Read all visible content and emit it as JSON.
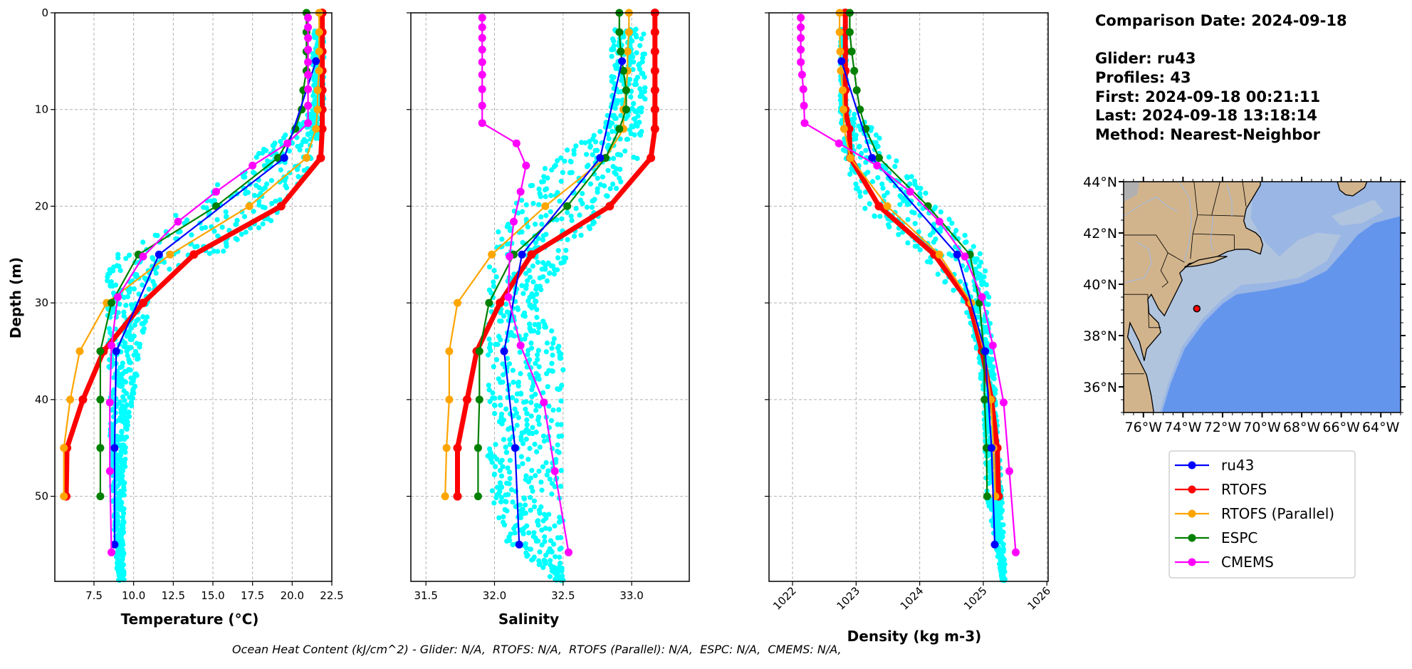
{
  "info": {
    "comparison_date": "Comparison Date: 2024-09-18",
    "glider": "Glider: ru43",
    "profiles": "Profiles: 43",
    "first": "First: 2024-09-18 00:21:11",
    "last": "Last: 2024-09-18 13:18:14",
    "method": "Method: Nearest-Neighbor"
  },
  "footer": "Ocean Heat Content (kJ/cm^2) - Glider: N/A,  RTOFS: N/A,  RTOFS (Parallel): N/A,  ESPC: N/A,  CMEMS: N/A,",
  "colors": {
    "ru43": "#0000ff",
    "RTOFS": "#ff0000",
    "RTOFS (Parallel)": "#ffa500",
    "ESPC": "#008000",
    "CMEMS": "#ff00ff",
    "glider_profiles": "#00ffff",
    "land": "#d2b48c",
    "shelf": "#b0c4de",
    "slope": "#9ab6e4",
    "deep_ocean": "#6495ed"
  },
  "legend": [
    {
      "name": "ru43",
      "color": "#0000ff"
    },
    {
      "name": "RTOFS",
      "color": "#ff0000"
    },
    {
      "name": "RTOFS (Parallel)",
      "color": "#ffa500"
    },
    {
      "name": "ESPC",
      "color": "#008000"
    },
    {
      "name": "CMEMS",
      "color": "#ff00ff"
    }
  ],
  "chart_data": [
    {
      "type": "line",
      "xlabel": "Temperature (°C)",
      "ylabel": "Depth (m)",
      "xlim": [
        5.03,
        22.5
      ],
      "ylim": [
        58.8,
        0
      ],
      "xticks": [
        7.5,
        10,
        12.5,
        15,
        17.5,
        20,
        22.5
      ],
      "xtick_labels": [
        "7.5",
        "10.0",
        "12.5",
        "15.0",
        "17.5",
        "20.0",
        "22.5"
      ],
      "yticks": [
        0,
        10,
        20,
        30,
        40,
        50
      ],
      "ytick_labels": [
        "0",
        "10",
        "20",
        "30",
        "40",
        "50"
      ],
      "grid": true,
      "glider_profiles_envelope": {
        "depth": [
          1.8,
          10,
          12,
          15,
          20,
          25,
          27,
          30,
          35,
          40,
          45,
          50,
          58.8
        ],
        "min": [
          21.3,
          21.3,
          20.0,
          17.5,
          13.5,
          9.0,
          8.3,
          8.3,
          8.4,
          8.5,
          8.5,
          8.6,
          9.0
        ],
        "max": [
          22.0,
          22.0,
          21.8,
          21.5,
          20.0,
          15.5,
          12.0,
          11.0,
          10.5,
          10.0,
          9.5,
          9.4,
          9.4
        ]
      },
      "series": [
        {
          "name": "RTOFS",
          "depths": [
            0,
            2,
            4,
            6,
            8,
            10,
            12,
            15,
            20,
            25,
            30,
            35,
            40,
            45,
            50
          ],
          "values": [
            21.9,
            21.9,
            21.9,
            21.9,
            21.9,
            21.9,
            21.9,
            21.8,
            19.3,
            13.8,
            10.6,
            8.1,
            6.8,
            5.8,
            5.75
          ]
        },
        {
          "name": "RTOFS (Parallel)",
          "depths": [
            0,
            2,
            4,
            6,
            8,
            10,
            12,
            15,
            20,
            25,
            30,
            35,
            40,
            45,
            50
          ],
          "values": [
            21.7,
            21.7,
            21.7,
            21.7,
            21.6,
            21.6,
            21.5,
            20.9,
            17.3,
            12.3,
            8.3,
            6.6,
            6.0,
            5.6,
            5.6
          ]
        },
        {
          "name": "ESPC",
          "depths": [
            0,
            2,
            4,
            6,
            8,
            10,
            12,
            15,
            20,
            25,
            30,
            35,
            40,
            45,
            50
          ],
          "values": [
            20.9,
            20.9,
            20.9,
            20.9,
            20.7,
            20.6,
            20.2,
            19.1,
            15.2,
            10.3,
            8.6,
            7.9,
            7.9,
            7.9,
            7.9
          ]
        },
        {
          "name": "ru43",
          "depths": [
            5,
            15,
            25,
            35,
            45,
            55
          ],
          "values": [
            21.5,
            19.5,
            11.6,
            8.9,
            8.8,
            8.8
          ]
        },
        {
          "name": "CMEMS",
          "depths": [
            0.5,
            1.5,
            2.6,
            3.8,
            5.1,
            6.4,
            7.9,
            9.6,
            11.4,
            13.5,
            15.8,
            18.5,
            21.6,
            25.2,
            29.4,
            34.4,
            40.3,
            47.4,
            55.8
          ],
          "values": [
            21.0,
            21.0,
            21.0,
            21.0,
            21.0,
            21.0,
            21.0,
            21.0,
            21.0,
            19.7,
            17.5,
            15.2,
            12.8,
            10.6,
            9.0,
            8.6,
            8.5,
            8.5,
            8.6
          ]
        }
      ]
    },
    {
      "type": "line",
      "xlabel": "Salinity",
      "xlim": [
        31.39,
        33.42
      ],
      "ylim": [
        58.8,
        0
      ],
      "xticks": [
        31.5,
        32.0,
        32.5,
        33.0
      ],
      "xtick_labels": [
        "31.5",
        "32.0",
        "32.5",
        "33.0"
      ],
      "yticks": [
        0,
        10,
        20,
        30,
        40,
        50
      ],
      "grid": true,
      "glider_profiles_envelope": {
        "depth": [
          1.8,
          10,
          12,
          15,
          20,
          25,
          30,
          35,
          40,
          45,
          50,
          55,
          58.8
        ],
        "min": [
          32.85,
          32.85,
          32.75,
          32.45,
          32.1,
          31.95,
          31.95,
          31.95,
          31.95,
          31.95,
          31.95,
          32.1,
          32.45
        ],
        "max": [
          33.1,
          33.1,
          33.08,
          33.05,
          32.85,
          32.55,
          32.3,
          32.5,
          32.5,
          32.5,
          32.5,
          32.5,
          32.5
        ]
      },
      "series": [
        {
          "name": "RTOFS",
          "depths": [
            0,
            2,
            4,
            6,
            8,
            10,
            12,
            15,
            20,
            25,
            30,
            35,
            40,
            45,
            50
          ],
          "values": [
            33.17,
            33.17,
            33.17,
            33.17,
            33.17,
            33.17,
            33.17,
            33.14,
            32.84,
            32.27,
            32.04,
            31.87,
            31.8,
            31.73,
            31.73
          ]
        },
        {
          "name": "RTOFS (Parallel)",
          "depths": [
            0,
            2,
            4,
            6,
            8,
            10,
            12,
            15,
            20,
            25,
            30,
            35,
            40,
            45,
            50
          ],
          "values": [
            32.98,
            32.98,
            32.97,
            32.97,
            32.96,
            32.94,
            32.94,
            32.81,
            32.37,
            31.98,
            31.73,
            31.67,
            31.67,
            31.65,
            31.64
          ]
        },
        {
          "name": "ESPC",
          "depths": [
            0,
            2,
            4,
            6,
            8,
            10,
            12,
            15,
            20,
            25,
            30,
            35,
            40,
            45,
            50
          ],
          "values": [
            32.91,
            32.91,
            32.92,
            32.94,
            32.96,
            32.96,
            32.91,
            32.81,
            32.53,
            32.14,
            31.96,
            31.89,
            31.89,
            31.88,
            31.88
          ]
        },
        {
          "name": "ru43",
          "depths": [
            5,
            15,
            25,
            35,
            45,
            55
          ],
          "values": [
            32.93,
            32.77,
            32.2,
            32.07,
            32.15,
            32.18
          ]
        },
        {
          "name": "CMEMS",
          "depths": [
            0.5,
            1.5,
            2.6,
            3.8,
            5.1,
            6.4,
            7.9,
            9.6,
            11.4,
            13.5,
            15.8,
            18.5,
            21.6,
            25.2,
            29.4,
            34.4,
            40.3,
            47.4,
            55.8
          ],
          "values": [
            31.91,
            31.91,
            31.91,
            31.91,
            31.91,
            31.91,
            31.91,
            31.91,
            31.91,
            32.16,
            32.23,
            32.19,
            32.14,
            32.11,
            32.1,
            32.19,
            32.36,
            32.44,
            32.54
          ]
        }
      ]
    },
    {
      "type": "line",
      "xlabel": "Density (kg m-3)",
      "xlim": [
        1021.63,
        1026.02
      ],
      "ylim": [
        58.8,
        0
      ],
      "xticks": [
        1022,
        1023,
        1024,
        1025,
        1026
      ],
      "xtick_labels": [
        "1022",
        "1023",
        "1024",
        "1025",
        "1026"
      ],
      "yticks": [
        0,
        10,
        20,
        30,
        40,
        50
      ],
      "grid": true,
      "glider_profiles_envelope": {
        "depth": [
          1.8,
          10,
          12,
          15,
          20,
          25,
          30,
          35,
          40,
          50,
          58.8
        ],
        "min": [
          1022.75,
          1022.75,
          1022.75,
          1022.8,
          1023.1,
          1024.0,
          1024.7,
          1024.9,
          1025.0,
          1025.05,
          1025.3
        ],
        "max": [
          1022.85,
          1022.85,
          1023.3,
          1023.6,
          1024.3,
          1025.0,
          1025.1,
          1025.15,
          1025.2,
          1025.3,
          1025.35
        ]
      },
      "series": [
        {
          "name": "RTOFS",
          "depths": [
            0,
            2,
            4,
            6,
            8,
            10,
            12,
            15,
            20,
            25,
            30,
            35,
            40,
            45,
            50
          ],
          "values": [
            1022.83,
            1022.83,
            1022.83,
            1022.83,
            1022.83,
            1022.83,
            1022.89,
            1022.91,
            1023.36,
            1024.23,
            1024.78,
            1024.98,
            1025.13,
            1025.22,
            1025.24
          ]
        },
        {
          "name": "RTOFS (Parallel)",
          "depths": [
            0,
            2,
            4,
            6,
            8,
            10,
            12,
            15,
            20,
            25,
            30,
            35,
            40,
            45,
            50
          ],
          "values": [
            1022.74,
            1022.74,
            1022.75,
            1022.76,
            1022.79,
            1022.8,
            1022.81,
            1022.91,
            1023.49,
            1024.31,
            1024.81,
            1025.01,
            1025.12,
            1025.16,
            1025.19
          ]
        },
        {
          "name": "ESPC",
          "depths": [
            0,
            2,
            4,
            6,
            8,
            10,
            12,
            15,
            20,
            25,
            30,
            35,
            40,
            45,
            50
          ],
          "values": [
            1022.9,
            1022.9,
            1022.93,
            1022.97,
            1023.01,
            1023.06,
            1023.15,
            1023.36,
            1024.13,
            1024.79,
            1024.94,
            1025.01,
            1025.02,
            1025.05,
            1025.06
          ]
        },
        {
          "name": "ru43",
          "depths": [
            5,
            15,
            25,
            35,
            45,
            55
          ],
          "values": [
            1022.77,
            1023.25,
            1024.59,
            1025.03,
            1025.13,
            1025.18
          ]
        },
        {
          "name": "CMEMS",
          "depths": [
            0.5,
            1.5,
            2.6,
            3.8,
            5.1,
            6.4,
            7.9,
            9.6,
            11.4,
            13.5,
            15.8,
            18.5,
            21.6,
            25.2,
            29.4,
            34.4,
            40.3,
            47.4,
            55.8
          ],
          "values": [
            1022.13,
            1022.13,
            1022.13,
            1022.13,
            1022.13,
            1022.15,
            1022.17,
            1022.18,
            1022.19,
            1022.73,
            1023.33,
            1023.85,
            1024.31,
            1024.71,
            1024.98,
            1025.15,
            1025.32,
            1025.41,
            1025.51
          ]
        }
      ]
    },
    {
      "type": "map",
      "lon_range": [
        -77,
        -63
      ],
      "lat_range": [
        35,
        44
      ],
      "lon_ticks": [
        -76,
        -74,
        -72,
        -70,
        -68,
        -66,
        -64
      ],
      "lon_tick_labels": [
        "76°W",
        "74°W",
        "72°W",
        "70°W",
        "68°W",
        "66°W",
        "64°W"
      ],
      "lat_ticks": [
        36,
        38,
        40,
        42,
        44
      ],
      "lat_tick_labels": [
        "36°N",
        "38°N",
        "40°N",
        "42°N",
        "44°N"
      ],
      "glider_position": {
        "lon": -73.3,
        "lat": 39.05
      }
    }
  ]
}
